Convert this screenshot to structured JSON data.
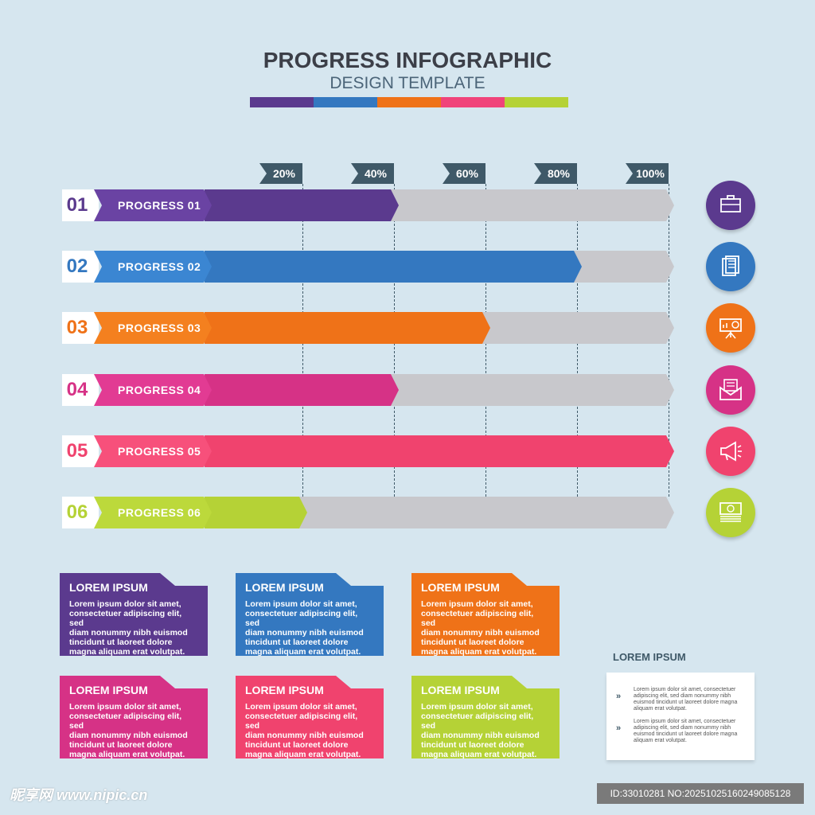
{
  "header": {
    "title": "PROGRESS INFOGRAPHIC",
    "subtitle": "DESIGN TEMPLATE",
    "colorbar": [
      "#5b3a8e",
      "#3478c0",
      "#ef7218",
      "#f0437a",
      "#b5d236"
    ]
  },
  "ticks": [
    {
      "label": "20%",
      "value": 20
    },
    {
      "label": "40%",
      "value": 40
    },
    {
      "label": "60%",
      "value": 60
    },
    {
      "label": "80%",
      "value": 80
    },
    {
      "label": "100%",
      "value": 100
    }
  ],
  "progress_rows": [
    {
      "number": "01",
      "label": "PROGRESS 01",
      "percent": 40,
      "color": "#5b3a8e",
      "label_color": "#6a43a3",
      "icon": "briefcase-icon"
    },
    {
      "number": "02",
      "label": "PROGRESS 02",
      "percent": 80,
      "color": "#3478c0",
      "label_color": "#3b86d2",
      "icon": "document-icon"
    },
    {
      "number": "03",
      "label": "PROGRESS 03",
      "percent": 60,
      "color": "#ef7218",
      "label_color": "#f4801f",
      "icon": "presentation-chart-icon"
    },
    {
      "number": "04",
      "label": "PROGRESS 04",
      "percent": 40,
      "color": "#d63286",
      "label_color": "#e23b93",
      "icon": "envelope-icon"
    },
    {
      "number": "05",
      "label": "PROGRESS 05",
      "percent": 100,
      "color": "#f0436e",
      "label_color": "#f7507b",
      "icon": "megaphone-icon"
    },
    {
      "number": "06",
      "label": "PROGRESS 06",
      "percent": 20,
      "color": "#b5d236",
      "label_color": "#bcd93b",
      "icon": "money-icon"
    }
  ],
  "cards": [
    {
      "title": "LOREM IPSUM",
      "body": [
        "Lorem ipsum dolor sit amet,",
        "consectetuer adipiscing elit, sed",
        "diam nonummy nibh euismod",
        "tincidunt ut laoreet dolore",
        "magna aliquam erat volutpat."
      ],
      "color": "#5b3a8e"
    },
    {
      "title": "LOREM IPSUM",
      "body": [
        "Lorem ipsum dolor sit amet,",
        "consectetuer adipiscing elit, sed",
        "diam nonummy nibh euismod",
        "tincidunt ut laoreet dolore",
        "magna aliquam erat volutpat."
      ],
      "color": "#3478c0"
    },
    {
      "title": "LOREM IPSUM",
      "body": [
        "Lorem ipsum dolor sit amet,",
        "consectetuer adipiscing elit, sed",
        "diam nonummy nibh euismod",
        "tincidunt ut laoreet dolore",
        "magna aliquam erat volutpat."
      ],
      "color": "#ef7218"
    },
    {
      "title": "LOREM IPSUM",
      "body": [
        "Lorem ipsum dolor sit amet,",
        "consectetuer adipiscing elit, sed",
        "diam nonummy nibh euismod",
        "tincidunt ut laoreet dolore",
        "magna aliquam erat volutpat."
      ],
      "color": "#d63286"
    },
    {
      "title": "LOREM IPSUM",
      "body": [
        "Lorem ipsum dolor sit amet,",
        "consectetuer adipiscing elit, sed",
        "diam nonummy nibh euismod",
        "tincidunt ut laoreet dolore",
        "magna aliquam erat volutpat."
      ],
      "color": "#f0436e"
    },
    {
      "title": "LOREM IPSUM",
      "body": [
        "Lorem ipsum dolor sit amet,",
        "consectetuer adipiscing elit, sed",
        "diam nonummy nibh euismod",
        "tincidunt ut laoreet dolore",
        "magna aliquam erat volutpat."
      ],
      "color": "#b5d236"
    }
  ],
  "side_panel": {
    "title": "LOREM IPSUM",
    "items": [
      {
        "arrow": "»",
        "text": "Lorem ipsum dolor sit amet, consectetuer adipiscing elit, sed diam nonummy nibh euismod tincidunt ut laoreet dolore magna aliquam erat volutpat."
      },
      {
        "arrow": "»",
        "text": "Lorem ipsum dolor sit amet, consectetuer adipiscing elit, sed diam nonummy nibh euismod tincidunt ut laoreet dolore magna aliquam erat volutpat."
      }
    ]
  },
  "watermark": {
    "left": "昵享网 www.nipic.cn",
    "right": "ID:33010281 NO:20251025160249085128"
  }
}
